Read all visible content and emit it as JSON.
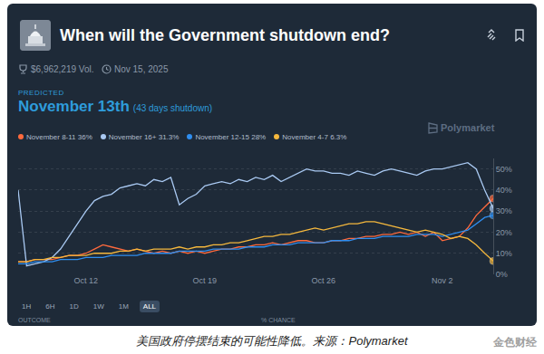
{
  "header": {
    "title": "When will the Government shutdown end?",
    "volume": "$6,962,219 Vol.",
    "end_date": "Nov 15, 2025",
    "predicted_label": "PREDICTED",
    "predicted": "November 13th",
    "predicted_note": "(43 days shutdown)",
    "brand": "Polymarket"
  },
  "chart_data": {
    "type": "line",
    "categories": [
      null,
      null,
      null,
      null,
      null,
      null,
      null,
      null,
      "Oct 12",
      null,
      null,
      null,
      null,
      null,
      null,
      null,
      null,
      null,
      null,
      null,
      null,
      null,
      "Oct 19",
      null,
      null,
      null,
      null,
      null,
      null,
      null,
      null,
      null,
      null,
      null,
      null,
      null,
      "Oct 26",
      null,
      null,
      null,
      null,
      null,
      null,
      null,
      null,
      null,
      null,
      null,
      null,
      null,
      "Nov 2",
      null,
      null,
      null,
      null,
      null,
      null
    ],
    "series": [
      {
        "name": "November 8-11 36%",
        "color": "#ff6a3d",
        "values": [
          6,
          6,
          7,
          7,
          7,
          8,
          9,
          9,
          10,
          12,
          14,
          13,
          12,
          11,
          12,
          11,
          10,
          11,
          10,
          11,
          10,
          11,
          10,
          11,
          12,
          12,
          13,
          13,
          14,
          14,
          15,
          14,
          15,
          16,
          16,
          15,
          15,
          16,
          16,
          17,
          17,
          18,
          18,
          19,
          19,
          20,
          19,
          20,
          18,
          20,
          16,
          17,
          18,
          22,
          28,
          32,
          36
        ]
      },
      {
        "name": "November 16+ 31.3%",
        "color": "#a9c9f2",
        "values": [
          40,
          4,
          5,
          6,
          8,
          12,
          18,
          24,
          30,
          35,
          37,
          38,
          41,
          42,
          43,
          42,
          45,
          44,
          46,
          33,
          36,
          38,
          42,
          43,
          44,
          43,
          45,
          44,
          46,
          45,
          47,
          44,
          46,
          48,
          50,
          49,
          49,
          48,
          48,
          47,
          49,
          48,
          47,
          49,
          50,
          49,
          48,
          47,
          49,
          50,
          50,
          51,
          52,
          53,
          50,
          40,
          31.3
        ]
      },
      {
        "name": "November 12-15 28%",
        "color": "#2f8ef0",
        "values": [
          5,
          5,
          6,
          6,
          6,
          7,
          7,
          7,
          8,
          8,
          8,
          9,
          9,
          9,
          9,
          10,
          10,
          10,
          10,
          11,
          11,
          11,
          11,
          12,
          12,
          12,
          12,
          13,
          13,
          13,
          14,
          14,
          14,
          15,
          15,
          15,
          15,
          16,
          16,
          16,
          17,
          17,
          17,
          18,
          18,
          18,
          18,
          19,
          19,
          19,
          18,
          19,
          20,
          21,
          24,
          27,
          28
        ]
      },
      {
        "name": "November 4-7 6.3%",
        "color": "#f5b83d",
        "values": [
          6,
          6,
          7,
          7,
          8,
          8,
          9,
          9,
          9,
          10,
          10,
          10,
          11,
          11,
          12,
          11,
          12,
          12,
          12,
          13,
          12,
          13,
          13,
          14,
          14,
          15,
          15,
          16,
          17,
          18,
          18,
          19,
          19,
          20,
          21,
          22,
          21,
          22,
          23,
          24,
          24,
          25,
          25,
          24,
          23,
          22,
          21,
          20,
          21,
          20,
          19,
          17,
          18,
          17,
          14,
          10,
          6.3
        ]
      }
    ],
    "ylim": [
      0,
      55
    ],
    "yticks": [
      {
        "value": 0,
        "label": "0%"
      },
      {
        "value": 10,
        "label": "10%"
      },
      {
        "value": 20,
        "label": "20%"
      },
      {
        "value": 30,
        "label": "30%"
      },
      {
        "value": 40,
        "label": "40%"
      },
      {
        "value": 50,
        "label": "50%"
      }
    ],
    "grid": true,
    "legend": "top left"
  },
  "controls": {
    "ranges": [
      "1H",
      "6H",
      "1D",
      "1W",
      "1M",
      "ALL"
    ],
    "selected": "ALL"
  },
  "table_header": [
    "OUTCOME",
    "% CHANCE"
  ],
  "caption": "美国政府停摆结束的可能性降低。来源：Polymarket",
  "watermark": "金色财经"
}
